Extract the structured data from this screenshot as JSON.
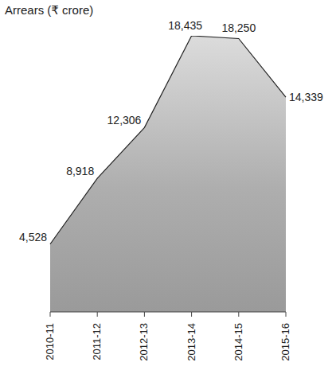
{
  "chart_data": {
    "type": "area",
    "title": "Arrears (₹ crore)",
    "categories": [
      "2010-11",
      "2011-12",
      "2012-13",
      "2013-14",
      "2014-15",
      "2015-16"
    ],
    "values": [
      4528,
      8918,
      12306,
      18435,
      18250,
      14339
    ],
    "value_labels": [
      "4,528",
      "8,918",
      "12,306",
      "18,435",
      "18,250",
      "14,339"
    ],
    "data_labels": true,
    "color": "#9a9a9a",
    "ylim": [
      0,
      18435
    ],
    "tick_labels": "x",
    "grid": false
  }
}
